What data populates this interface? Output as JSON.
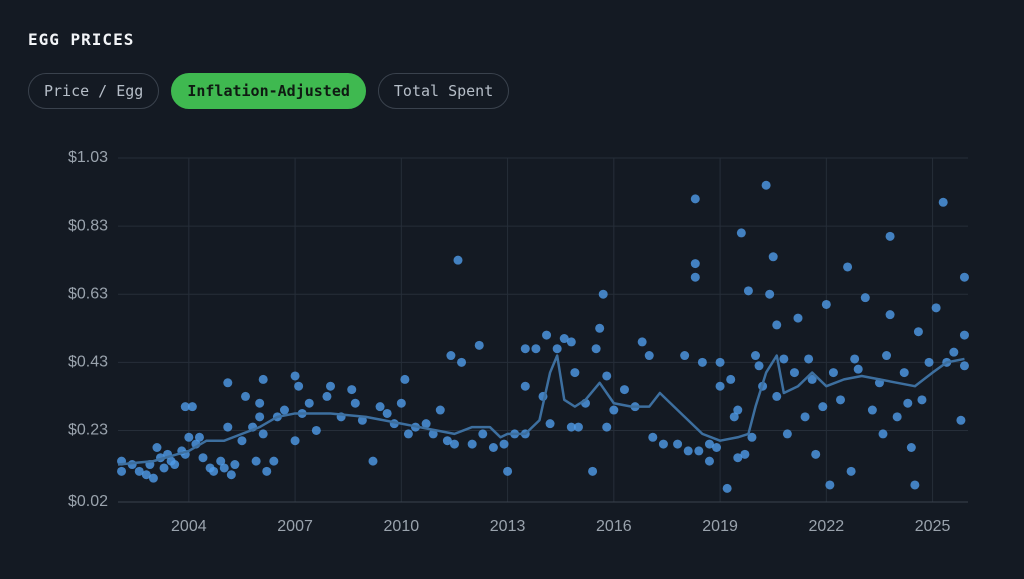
{
  "header": {
    "title": "EGG PRICES"
  },
  "tabs": [
    {
      "label": "Price / Egg",
      "active": false
    },
    {
      "label": "Inflation-Adjusted",
      "active": true
    },
    {
      "label": "Total Spent",
      "active": false
    }
  ],
  "chart_data": {
    "type": "scatter",
    "x": [
      2002.1,
      2002.1,
      2002.4,
      2002.6,
      2002.8,
      2002.9,
      2003.0,
      2003.1,
      2003.2,
      2003.3,
      2003.4,
      2003.5,
      2003.6,
      2003.8,
      2003.9,
      2004.0,
      2003.9,
      2004.1,
      2004.2,
      2004.3,
      2004.4,
      2004.6,
      2004.7,
      2004.9,
      2005.0,
      2005.1,
      2005.1,
      2005.2,
      2005.3,
      2005.5,
      2005.6,
      2005.8,
      2005.9,
      2006.0,
      2006.0,
      2006.1,
      2006.1,
      2006.2,
      2006.4,
      2006.5,
      2006.7,
      2007.0,
      2007.1,
      2007.0,
      2007.2,
      2007.4,
      2007.6,
      2007.9,
      2008.0,
      2008.3,
      2008.6,
      2008.7,
      2008.9,
      2009.2,
      2009.4,
      2009.6,
      2009.8,
      2010.0,
      2010.1,
      2010.2,
      2010.4,
      2010.7,
      2010.9,
      2011.1,
      2011.3,
      2011.5,
      2011.4,
      2011.6,
      2011.7,
      2012.0,
      2012.2,
      2012.3,
      2012.6,
      2012.9,
      2013.0,
      2013.2,
      2013.5,
      2013.5,
      2013.5,
      2013.8,
      2014.0,
      2014.1,
      2014.2,
      2014.4,
      2014.6,
      2014.8,
      2014.9,
      2014.8,
      2015.0,
      2015.2,
      2015.4,
      2015.5,
      2015.6,
      2015.7,
      2015.8,
      2015.8,
      2016.0,
      2016.3,
      2016.6,
      2016.8,
      2017.0,
      2017.1,
      2017.4,
      2017.8,
      2018.0,
      2018.1,
      2018.3,
      2018.3,
      2018.3,
      2018.5,
      2018.4,
      2018.7,
      2018.7,
      2018.9,
      2019.0,
      2019.0,
      2019.2,
      2019.3,
      2019.4,
      2019.5,
      2019.5,
      2019.6,
      2019.7,
      2019.8,
      2019.9,
      2020.0,
      2020.1,
      2020.2,
      2020.3,
      2020.4,
      2020.5,
      2020.6,
      2020.6,
      2020.8,
      2020.9,
      2021.1,
      2021.2,
      2021.4,
      2021.5,
      2021.6,
      2021.7,
      2021.9,
      2022.0,
      2022.1,
      2022.2,
      2022.4,
      2022.6,
      2022.7,
      2022.8,
      2022.9,
      2023.1,
      2023.3,
      2023.5,
      2023.6,
      2023.7,
      2023.8,
      2023.8,
      2024.0,
      2024.2,
      2024.3,
      2024.4,
      2024.5,
      2024.6,
      2024.7,
      2024.9,
      2025.1,
      2025.3,
      2025.4,
      2025.6,
      2025.8,
      2025.9,
      2025.9,
      2025.9
    ],
    "values": [
      0.14,
      0.11,
      0.13,
      0.11,
      0.1,
      0.13,
      0.09,
      0.18,
      0.15,
      0.12,
      0.16,
      0.14,
      0.13,
      0.17,
      0.16,
      0.21,
      0.3,
      0.3,
      0.19,
      0.21,
      0.15,
      0.12,
      0.11,
      0.14,
      0.12,
      0.37,
      0.24,
      0.1,
      0.13,
      0.2,
      0.33,
      0.24,
      0.14,
      0.27,
      0.31,
      0.38,
      0.22,
      0.11,
      0.14,
      0.27,
      0.29,
      0.39,
      0.36,
      0.2,
      0.28,
      0.31,
      0.23,
      0.33,
      0.36,
      0.27,
      0.35,
      0.31,
      0.26,
      0.14,
      0.3,
      0.28,
      0.25,
      0.31,
      0.38,
      0.22,
      0.24,
      0.25,
      0.22,
      0.29,
      0.2,
      0.19,
      0.45,
      0.73,
      0.43,
      0.19,
      0.48,
      0.22,
      0.18,
      0.19,
      0.11,
      0.22,
      0.22,
      0.36,
      0.47,
      0.47,
      0.33,
      0.51,
      0.25,
      0.47,
      0.5,
      0.49,
      0.4,
      0.24,
      0.24,
      0.31,
      0.11,
      0.47,
      0.53,
      0.63,
      0.39,
      0.24,
      0.29,
      0.35,
      0.3,
      0.49,
      0.45,
      0.21,
      0.19,
      0.19,
      0.45,
      0.17,
      0.91,
      0.72,
      0.68,
      0.43,
      0.17,
      0.19,
      0.14,
      0.18,
      0.36,
      0.43,
      0.06,
      0.38,
      0.27,
      0.15,
      0.29,
      0.81,
      0.16,
      0.64,
      0.21,
      0.45,
      0.42,
      0.36,
      0.95,
      0.63,
      0.74,
      0.54,
      0.33,
      0.44,
      0.22,
      0.4,
      0.56,
      0.27,
      0.44,
      0.38,
      0.16,
      0.3,
      0.6,
      0.07,
      0.4,
      0.32,
      0.71,
      0.11,
      0.44,
      0.41,
      0.62,
      0.29,
      0.37,
      0.22,
      0.45,
      0.8,
      0.57,
      0.27,
      0.4,
      0.31,
      0.18,
      0.07,
      0.52,
      0.32,
      0.43,
      0.59,
      0.9,
      0.43,
      0.46,
      0.26,
      0.68,
      0.51,
      0.42
    ],
    "color": "#4f9be8",
    "trend": {
      "color": "#3d6f9f",
      "x": [
        2002.0,
        2003.0,
        2004.0,
        2004.5,
        2005.0,
        2005.5,
        2006.0,
        2006.5,
        2007.0,
        2008.0,
        2009.0,
        2010.0,
        2010.5,
        2011.0,
        2011.5,
        2012.0,
        2012.5,
        2012.8,
        2013.0,
        2013.5,
        2013.9,
        2014.2,
        2014.4,
        2014.6,
        2014.9,
        2015.2,
        2015.6,
        2016.0,
        2016.5,
        2017.0,
        2017.3,
        2017.6,
        2018.0,
        2018.5,
        2019.0,
        2019.5,
        2019.8,
        2020.0,
        2020.3,
        2020.6,
        2020.8,
        2021.2,
        2021.6,
        2022.0,
        2022.5,
        2023.0,
        2023.5,
        2024.0,
        2024.5,
        2025.0,
        2025.4,
        2025.9
      ],
      "values": [
        0.13,
        0.14,
        0.17,
        0.2,
        0.2,
        0.22,
        0.24,
        0.27,
        0.28,
        0.28,
        0.27,
        0.25,
        0.24,
        0.23,
        0.22,
        0.24,
        0.24,
        0.21,
        0.22,
        0.22,
        0.26,
        0.4,
        0.45,
        0.32,
        0.3,
        0.32,
        0.37,
        0.31,
        0.3,
        0.3,
        0.34,
        0.31,
        0.27,
        0.22,
        0.2,
        0.21,
        0.22,
        0.3,
        0.4,
        0.45,
        0.34,
        0.36,
        0.4,
        0.36,
        0.38,
        0.39,
        0.38,
        0.37,
        0.36,
        0.4,
        0.43,
        0.44
      ]
    },
    "xlim": [
      2002,
      2026
    ],
    "xticks": [
      2004,
      2007,
      2010,
      2013,
      2016,
      2019,
      2022,
      2025
    ],
    "ylim": [
      0.02,
      1.03
    ],
    "yticks": [
      {
        "value": 0.02,
        "label": "$0.02"
      },
      {
        "value": 0.23,
        "label": "$0.23"
      },
      {
        "value": 0.43,
        "label": "$0.43"
      },
      {
        "value": 0.63,
        "label": "$0.63"
      },
      {
        "value": 0.83,
        "label": "$0.83"
      },
      {
        "value": 1.03,
        "label": "$1.03"
      }
    ],
    "grid": true
  }
}
